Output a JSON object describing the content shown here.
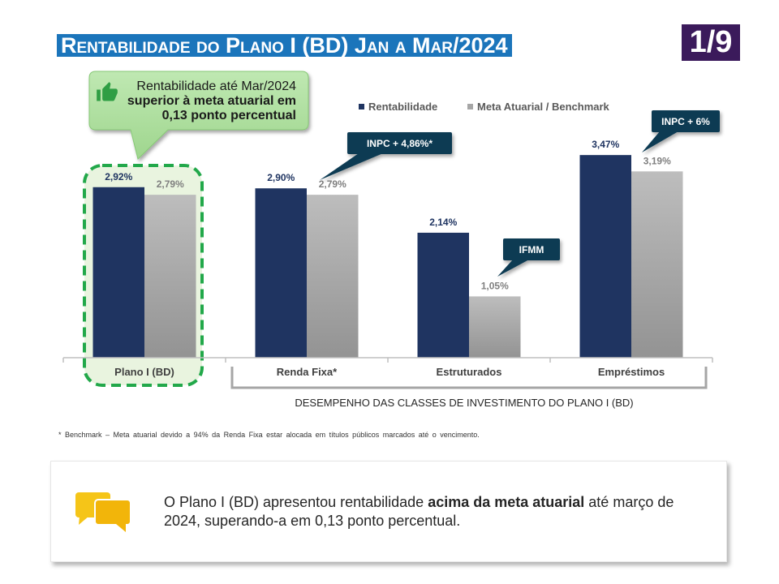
{
  "slide": {
    "title": "Rentabilidade do Plano I (BD) Jan a Mar/2024",
    "page_indicator": "1/9"
  },
  "colors": {
    "title_bg": "#1b75bb",
    "page_badge_bg": "#3b1a5b",
    "highlight_green": "#22a84a",
    "callout_bg": "#0d3b53"
  },
  "highlight_callout": {
    "icon": "thumbs-up-icon",
    "line1": "Rentabilidade até Mar/2024",
    "line2": "superior à meta atuarial em",
    "line3": "0,13 ponto percentual"
  },
  "chart_data": {
    "type": "bar",
    "categories": [
      "Plano I (BD)",
      "Renda Fixa*",
      "Estruturados",
      "Empréstimos"
    ],
    "series": [
      {
        "name": "Rentabilidade",
        "color": "#1f3461",
        "values": [
          2.92,
          2.9,
          2.14,
          3.47
        ],
        "labels": [
          "2,92%",
          "2,90%",
          "2,14%",
          "3,47%"
        ]
      },
      {
        "name": "Meta Atuarial / Benchmark",
        "color": "#a6a6a6",
        "values": [
          2.79,
          2.79,
          1.05,
          3.19
        ],
        "labels": [
          "2,79%",
          "2,79%",
          "1,05%",
          "3,19%"
        ]
      }
    ],
    "annotations": [
      null,
      "INPC + 4,86%*",
      "IFMM",
      "INPC + 6%"
    ],
    "highlighted": [
      true,
      false,
      false,
      false
    ],
    "group_label": "DESEMPENHO DAS CLASSES DE INVESTIMENTO DO PLANO I (BD)",
    "ylim": [
      0,
      4.5
    ],
    "grid": false,
    "legend": "top-right"
  },
  "footnote": "* Benchmark – Meta atuarial devido a 94% da Renda Fixa estar alocada em títulos públicos marcados até o vencimento.",
  "summary": {
    "icon": "speech-bubbles-icon",
    "text_before": "O Plano I (BD) apresentou rentabilidade ",
    "text_bold": "acima da meta atuarial",
    "text_after": " até março de 2024, superando-a em 0,13 ponto percentual."
  }
}
